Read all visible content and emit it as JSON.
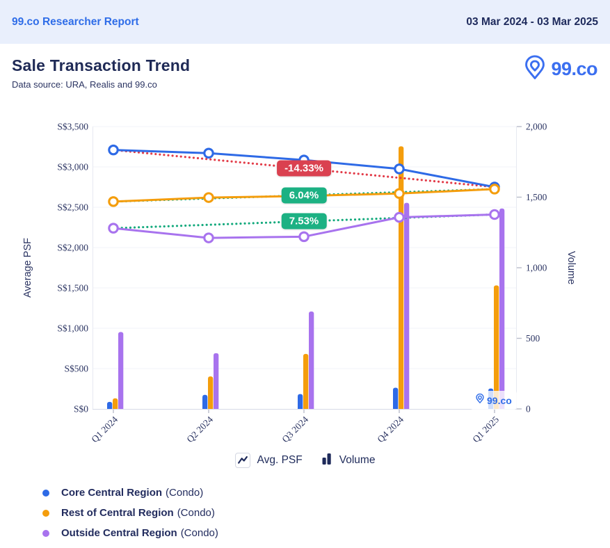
{
  "header": {
    "report_title": "99.co Researcher Report",
    "date_range": "03 Mar 2024 - 03 Mar 2025"
  },
  "page": {
    "title": "Sale Transaction Trend",
    "subtitle": "Data source: URA, Realis and 99.co",
    "brand": "99.co",
    "watermark": "99.co"
  },
  "chart_data": {
    "type": "combo (line = Avg PSF, bar = Volume)",
    "categories": [
      "Q1 2024",
      "Q2 2024",
      "Q3 2024",
      "Q4 2024",
      "Q1 2025"
    ],
    "left_axis": {
      "title": "Average PSF",
      "min": 0,
      "max": 3500,
      "tick_labels": [
        "S$3,500",
        "S$3,000",
        "S$2,500",
        "S$2,000",
        "S$1,500",
        "S$1,000",
        "S$500",
        "S$0"
      ]
    },
    "right_axis": {
      "title": "Volume",
      "min": 0,
      "max": 2000,
      "tick_labels": [
        "2,000",
        "1,500",
        "1,000",
        "500",
        "0"
      ]
    },
    "grid": "horizontal only",
    "legend_position": "bottom-left",
    "marker_legend": [
      {
        "label": "Avg. PSF",
        "icon": "line-icon"
      },
      {
        "label": "Volume",
        "icon": "bars-icon"
      }
    ],
    "series": [
      {
        "name": "Core Central Region",
        "suffix": "(Condo)",
        "color": "#2e6ae6",
        "avg_psf": [
          3210,
          3170,
          3085,
          2975,
          2750
        ],
        "volume": [
          50,
          100,
          105,
          150,
          145
        ],
        "trend": {
          "change_label": "-14.33%",
          "line_color": "#e23b48",
          "badge_color": "#da4150",
          "from_psf": 3210,
          "to_psf": 2750
        }
      },
      {
        "name": "Rest of Central Region",
        "suffix": "(Condo)",
        "color": "#f49d0c",
        "avg_psf": [
          2570,
          2620,
          2640,
          2670,
          2725
        ],
        "volume": [
          75,
          230,
          390,
          1860,
          875
        ],
        "trend": {
          "change_label": "6.04%",
          "line_color": "#12a97c",
          "badge_color": "#1cb183",
          "from_psf": 2570,
          "to_psf": 2725
        }
      },
      {
        "name": "Outside Central Region",
        "suffix": "(Condo)",
        "color": "#a873ee",
        "avg_psf": [
          2240,
          2120,
          2135,
          2375,
          2410
        ],
        "volume": [
          545,
          395,
          690,
          1460,
          1420
        ],
        "trend": {
          "change_label": "7.53%",
          "line_color": "#12a97c",
          "badge_color": "#1cb183",
          "from_psf": 2240,
          "to_psf": 2410
        }
      }
    ]
  }
}
